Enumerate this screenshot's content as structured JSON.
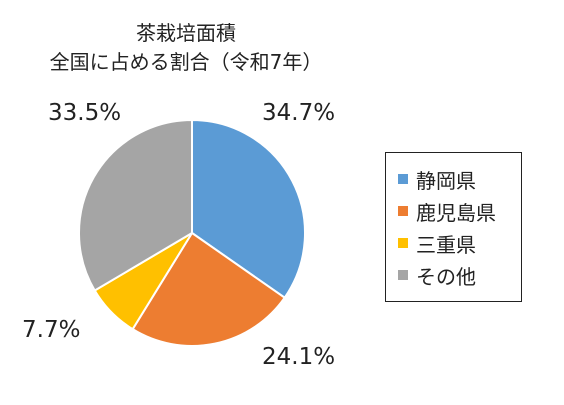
{
  "chart_data": {
    "type": "pie",
    "title": [
      "茶栽培面積",
      "全国に占める割合（令和7年）"
    ],
    "categories": [
      "静岡県",
      "鹿児島県",
      "三重県",
      "その他"
    ],
    "values": [
      34.7,
      24.1,
      7.7,
      33.5
    ],
    "labels": [
      "34.7%",
      "24.1%",
      "7.7%",
      "33.5%"
    ],
    "colors": [
      "#5b9bd5",
      "#ed7d31",
      "#ffc000",
      "#a5a5a5"
    ],
    "start_angle_deg": 0,
    "direction": "clockwise",
    "legend": "right"
  }
}
